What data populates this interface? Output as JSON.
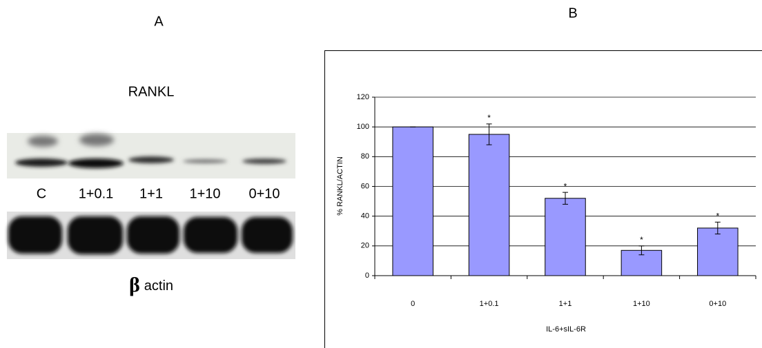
{
  "panel_a": {
    "label": "A",
    "title": "RANKL",
    "lanes": [
      "C",
      "1+0.1",
      "1+1",
      "1+10",
      "0+10"
    ],
    "caption_symbol": "β",
    "caption": "actin"
  },
  "chart_data": {
    "type": "bar",
    "panel_label": "B",
    "categories": [
      "0",
      "1+0.1",
      "1+1",
      "1+10",
      "0+10"
    ],
    "values": [
      100,
      95,
      52,
      17,
      32
    ],
    "errors": [
      0,
      7,
      4,
      3,
      4
    ],
    "significance": [
      null,
      "*",
      "*",
      "*",
      "*"
    ],
    "color": "#9999ff",
    "ylim": [
      0,
      120
    ],
    "yticks": [
      0,
      20,
      40,
      60,
      80,
      100,
      120
    ],
    "grid": true,
    "y_label": "% RANKL/ACTIN",
    "x_label": "IL-6+sIL-6R"
  }
}
